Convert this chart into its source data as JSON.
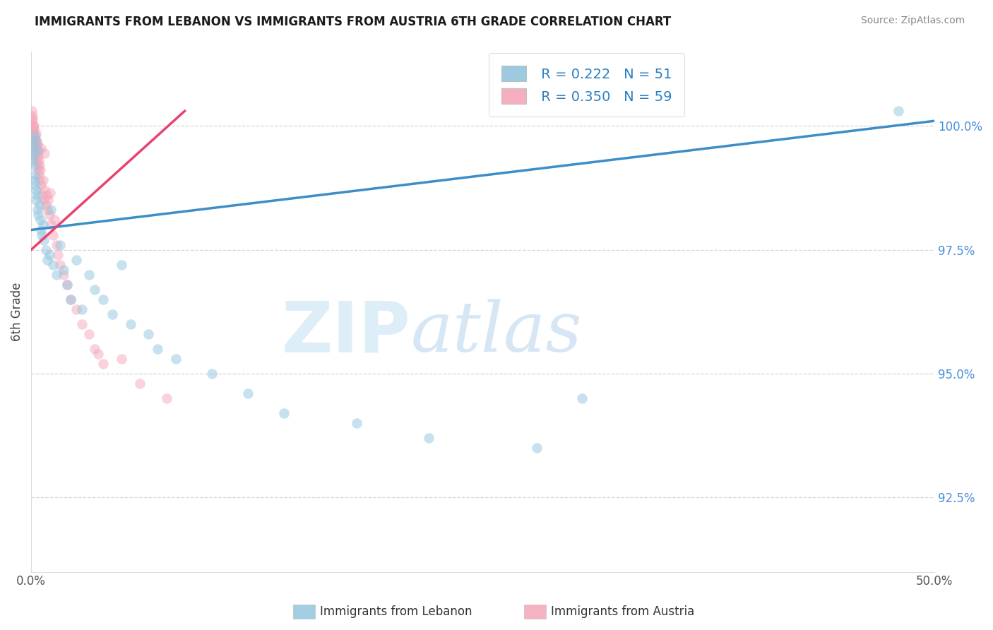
{
  "title": "IMMIGRANTS FROM LEBANON VS IMMIGRANTS FROM AUSTRIA 6TH GRADE CORRELATION CHART",
  "source": "Source: ZipAtlas.com",
  "ylabel": "6th Grade",
  "xlim": [
    0.0,
    50.0
  ],
  "ylim": [
    91.0,
    101.5
  ],
  "yticks": [
    92.5,
    95.0,
    97.5,
    100.0
  ],
  "ytick_labels": [
    "92.5%",
    "95.0%",
    "97.5%",
    "100.0%"
  ],
  "xtick_labels": [
    "0.0%",
    "50.0%"
  ],
  "legend_blue_r": "R = 0.222",
  "legend_blue_n": "N = 51",
  "legend_pink_r": "R = 0.350",
  "legend_pink_n": "N = 59",
  "legend_label_blue": "Immigrants from Lebanon",
  "legend_label_pink": "Immigrants from Austria",
  "blue_color": "#92c5de",
  "pink_color": "#f4a6b8",
  "blue_line_color": "#3d8dc8",
  "pink_line_color": "#e8436e",
  "scatter_alpha": 0.5,
  "scatter_size": 110,
  "blue_x": [
    0.05,
    0.08,
    0.1,
    0.12,
    0.15,
    0.18,
    0.2,
    0.22,
    0.25,
    0.28,
    0.3,
    0.35,
    0.4,
    0.45,
    0.5,
    0.55,
    0.6,
    0.65,
    0.7,
    0.8,
    0.9,
    1.0,
    1.2,
    1.4,
    1.6,
    1.8,
    2.0,
    2.2,
    2.5,
    2.8,
    3.2,
    3.5,
    4.0,
    4.5,
    5.0,
    5.5,
    6.5,
    7.0,
    8.0,
    10.0,
    12.0,
    14.0,
    18.0,
    22.0,
    28.0,
    30.5,
    0.15,
    0.25,
    0.4,
    1.1,
    48.0
  ],
  "blue_y": [
    99.5,
    99.3,
    99.6,
    99.4,
    99.2,
    98.9,
    99.0,
    98.8,
    98.7,
    98.5,
    98.6,
    98.3,
    98.2,
    98.4,
    98.1,
    97.9,
    97.8,
    98.0,
    97.7,
    97.5,
    97.3,
    97.4,
    97.2,
    97.0,
    97.6,
    97.1,
    96.8,
    96.5,
    97.3,
    96.3,
    97.0,
    96.7,
    96.5,
    96.2,
    97.2,
    96.0,
    95.8,
    95.5,
    95.3,
    95.0,
    94.6,
    94.2,
    94.0,
    93.7,
    93.5,
    94.5,
    99.8,
    99.7,
    99.5,
    98.3,
    100.3
  ],
  "pink_x": [
    0.03,
    0.05,
    0.07,
    0.1,
    0.12,
    0.14,
    0.16,
    0.18,
    0.2,
    0.22,
    0.24,
    0.26,
    0.28,
    0.3,
    0.32,
    0.34,
    0.36,
    0.38,
    0.4,
    0.42,
    0.44,
    0.46,
    0.48,
    0.5,
    0.55,
    0.6,
    0.65,
    0.7,
    0.75,
    0.8,
    0.85,
    0.9,
    0.95,
    1.0,
    1.1,
    1.2,
    1.3,
    1.4,
    1.5,
    1.6,
    1.8,
    2.0,
    2.2,
    2.5,
    2.8,
    3.2,
    3.5,
    4.0,
    5.0,
    6.0,
    7.5,
    0.08,
    0.15,
    0.25,
    0.35,
    0.55,
    0.72,
    1.05,
    3.7
  ],
  "pink_y": [
    100.3,
    100.1,
    100.2,
    100.0,
    99.9,
    99.8,
    100.0,
    99.7,
    99.6,
    99.8,
    99.5,
    99.7,
    99.4,
    99.6,
    99.3,
    99.5,
    99.2,
    99.4,
    99.1,
    99.3,
    99.0,
    99.2,
    98.9,
    99.1,
    98.8,
    98.6,
    98.9,
    98.5,
    98.7,
    98.4,
    98.6,
    98.3,
    98.5,
    98.2,
    98.0,
    97.8,
    98.1,
    97.6,
    97.4,
    97.2,
    97.0,
    96.8,
    96.5,
    96.3,
    96.0,
    95.8,
    95.5,
    95.2,
    95.3,
    94.8,
    94.5,
    100.15,
    99.95,
    99.85,
    99.65,
    99.55,
    99.45,
    98.65,
    95.4
  ],
  "blue_trendline_x": [
    0.0,
    50.0
  ],
  "blue_trendline_y": [
    97.9,
    100.1
  ],
  "pink_trendline_x": [
    0.0,
    8.5
  ],
  "pink_trendline_y": [
    97.5,
    100.3
  ],
  "background_color": "#ffffff",
  "grid_color": "#cccccc",
  "grid_style": "--",
  "grid_alpha": 0.8
}
